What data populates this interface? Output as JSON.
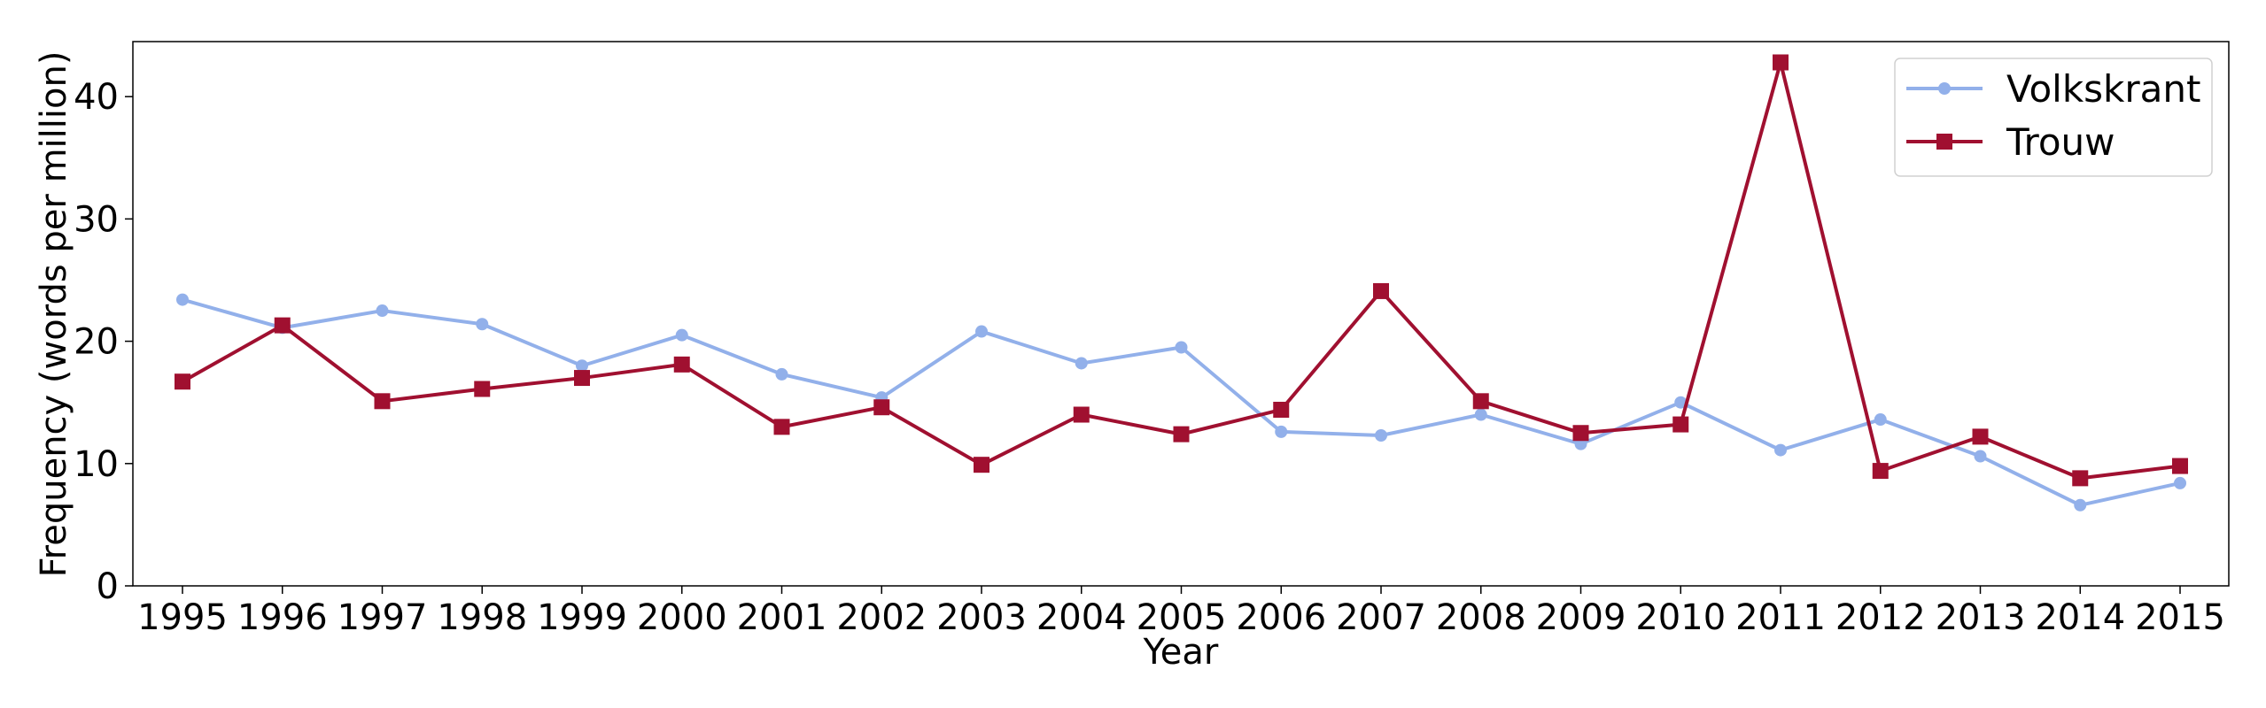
{
  "chart_data": {
    "type": "line",
    "title": "",
    "xlabel": "Year",
    "ylabel": "Frequency (words per million)",
    "categories": [
      "1995",
      "1996",
      "1997",
      "1998",
      "1999",
      "2000",
      "2001",
      "2002",
      "2003",
      "2004",
      "2005",
      "2006",
      "2007",
      "2008",
      "2009",
      "2010",
      "2011",
      "2012",
      "2013",
      "2014",
      "2015"
    ],
    "ylim": [
      0,
      44.5
    ],
    "yticks": [
      0,
      10,
      20,
      30,
      40
    ],
    "grid": false,
    "legend_position": "top-right",
    "series": [
      {
        "name": "Volkskrant",
        "color": "#92b0ea",
        "marker": "circle",
        "values": [
          23.4,
          21.1,
          22.5,
          21.4,
          18.0,
          20.5,
          17.3,
          15.4,
          20.8,
          18.2,
          19.5,
          12.6,
          12.3,
          14.0,
          11.6,
          15.0,
          11.1,
          13.6,
          10.6,
          6.6,
          8.4
        ]
      },
      {
        "name": "Trouw",
        "color": "#a01030",
        "marker": "square",
        "values": [
          16.7,
          21.3,
          15.1,
          16.1,
          17.0,
          18.1,
          13.0,
          14.6,
          9.9,
          14.0,
          12.4,
          14.4,
          24.1,
          15.1,
          12.5,
          13.2,
          42.8,
          9.4,
          12.2,
          8.8,
          9.8
        ]
      }
    ]
  }
}
